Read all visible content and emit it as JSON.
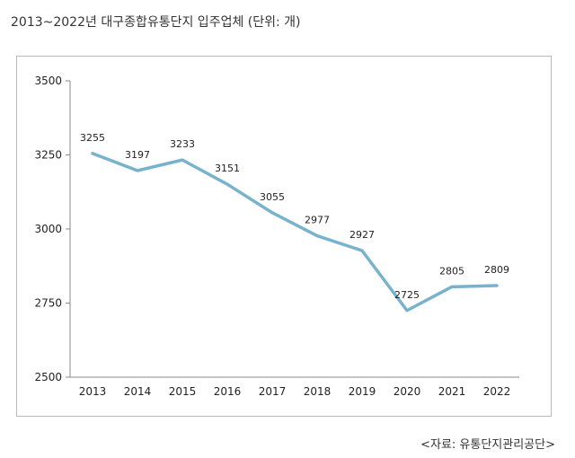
{
  "header": {
    "title": "2013~2022년 대구종합유통단지 입주업체 (단위: 개)"
  },
  "footer": {
    "source": "<자료: 유통단지관리공단>"
  },
  "chart_data": {
    "type": "line",
    "title": "2013~2022년 대구종합유통단지 입주업체 (단위: 개)",
    "x": [
      "2013",
      "2014",
      "2015",
      "2016",
      "2017",
      "2018",
      "2019",
      "2020",
      "2021",
      "2022"
    ],
    "series": [
      {
        "values": [
          3255,
          3197,
          3233,
          3151,
          3055,
          2977,
          2927,
          2725,
          2805,
          2809
        ]
      }
    ],
    "ylim": [
      2500,
      3500
    ],
    "yticks": [
      2500,
      2750,
      3000,
      3250,
      3500
    ],
    "grid": false,
    "legend": "none",
    "line_color": "#79b2cc"
  }
}
